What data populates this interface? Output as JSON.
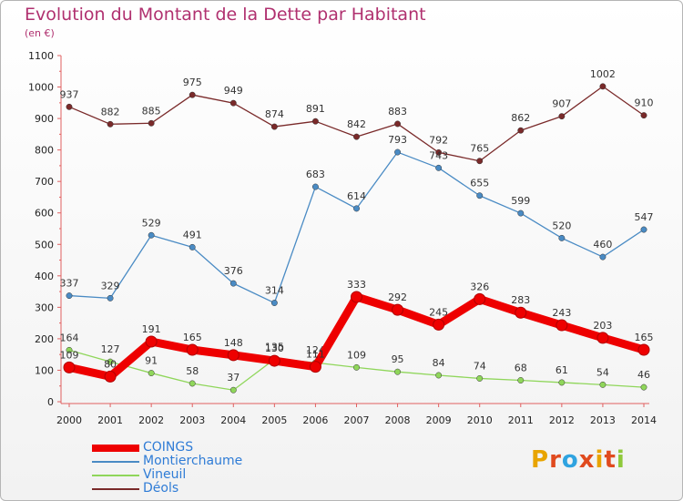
{
  "title": "Evolution du Montant de la Dette par Habitant",
  "unit": "(en €)",
  "brand": {
    "logo_text": "Proxiti",
    "logo_colors": [
      "#e8a400",
      "#e04a1e",
      "#2fa3e0",
      "#e04a1e",
      "#e8a400",
      "#e04a1e",
      "#8fc93a"
    ]
  },
  "chart_data": {
    "type": "line",
    "title": "Evolution du Montant de la Dette par Habitant",
    "subtitle": "(en €)",
    "xlabel": "",
    "ylabel": "",
    "x": [
      2000,
      2001,
      2002,
      2003,
      2004,
      2005,
      2006,
      2007,
      2008,
      2009,
      2010,
      2011,
      2012,
      2013,
      2014
    ],
    "ylim": [
      0,
      1100
    ],
    "yticks": [
      0,
      100,
      200,
      300,
      400,
      500,
      600,
      700,
      800,
      900,
      1000,
      1100
    ],
    "grid": false,
    "legend_position": "bottom-left",
    "series": [
      {
        "name": "COINGS",
        "color": "#ee0000",
        "emphasis": true,
        "values": [
          109,
          80,
          191,
          165,
          148,
          130,
          111,
          333,
          292,
          245,
          326,
          283,
          243,
          203,
          165
        ]
      },
      {
        "name": "Montierchaume",
        "color": "#4a8bc4",
        "values": [
          337,
          329,
          529,
          491,
          376,
          314,
          683,
          614,
          793,
          743,
          655,
          599,
          520,
          460,
          547
        ]
      },
      {
        "name": "Vineuil",
        "color": "#8fd65a",
        "values": [
          164,
          127,
          91,
          58,
          37,
          135,
          124,
          109,
          95,
          84,
          74,
          68,
          61,
          54,
          46
        ]
      },
      {
        "name": "Déols",
        "color": "#7a2a2a",
        "values": [
          937,
          882,
          885,
          975,
          949,
          874,
          891,
          842,
          883,
          792,
          765,
          862,
          907,
          1002,
          910
        ]
      }
    ]
  }
}
